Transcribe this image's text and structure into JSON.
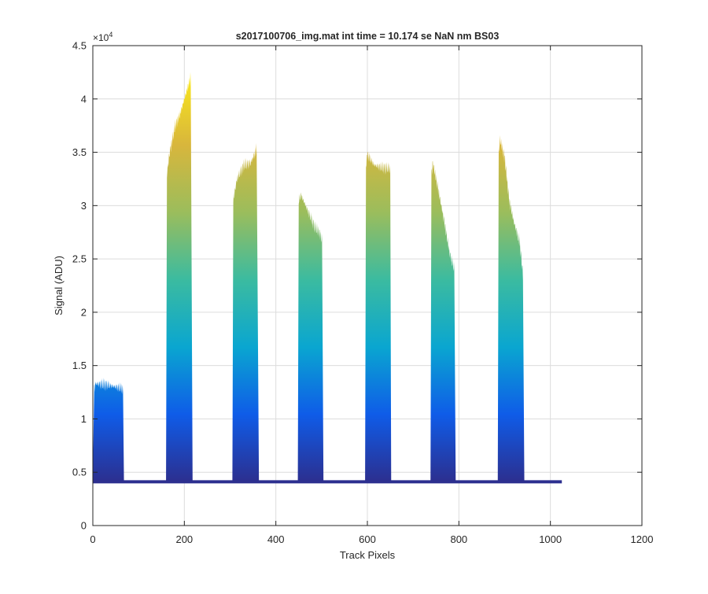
{
  "chart_data": {
    "type": "area",
    "title": "s2017100706_img.mat int time = 10.174 se  NaN nm BS03",
    "xlabel": "Track Pixels",
    "ylabel": "Signal (ADU)",
    "y_exponent_label": "×10",
    "y_exponent_power": "4",
    "xlim": [
      0,
      1200
    ],
    "ylim": [
      0,
      45000
    ],
    "x_ticks": [
      0,
      200,
      400,
      600,
      800,
      1000,
      1200
    ],
    "y_ticks": [
      0,
      5000,
      10000,
      15000,
      20000,
      25000,
      30000,
      35000,
      40000,
      45000
    ],
    "x_tick_labels": [
      "0",
      "200",
      "400",
      "600",
      "800",
      "1000",
      "1200"
    ],
    "y_tick_labels": [
      "0",
      "0.5",
      "1",
      "1.5",
      "2",
      "2.5",
      "3",
      "3.5",
      "4",
      "4.5"
    ],
    "grid": true,
    "colormap": [
      "#2c2f8f",
      "#0f5ce8",
      "#0aa6d0",
      "#3bbba0",
      "#9bbd5c",
      "#d8b63c",
      "#f9e61d"
    ],
    "baseline": 4100,
    "x_extent": [
      0,
      1025
    ],
    "bands": [
      {
        "x_start": 0,
        "x_end": 68,
        "peak": 13300,
        "profile": [
          [
            0,
            4800
          ],
          [
            3,
            12800
          ],
          [
            6,
            13300
          ],
          [
            30,
            13200
          ],
          [
            50,
            13000
          ],
          [
            60,
            12900
          ],
          [
            66,
            12800
          ],
          [
            68,
            4300
          ]
        ]
      },
      {
        "x_start": 160,
        "x_end": 218,
        "peak": 42000,
        "profile": [
          [
            160,
            4200
          ],
          [
            162,
            33000
          ],
          [
            168,
            35000
          ],
          [
            180,
            37500
          ],
          [
            190,
            38500
          ],
          [
            200,
            40000
          ],
          [
            210,
            41500
          ],
          [
            214,
            42000
          ],
          [
            218,
            4300
          ]
        ]
      },
      {
        "x_start": 305,
        "x_end": 363,
        "peak": 35300,
        "profile": [
          [
            305,
            4200
          ],
          [
            307,
            30500
          ],
          [
            315,
            32500
          ],
          [
            330,
            33800
          ],
          [
            345,
            34000
          ],
          [
            358,
            35300
          ],
          [
            363,
            4300
          ]
        ]
      },
      {
        "x_start": 448,
        "x_end": 504,
        "peak": 31000,
        "profile": [
          [
            448,
            4200
          ],
          [
            450,
            30500
          ],
          [
            455,
            31000
          ],
          [
            470,
            29500
          ],
          [
            485,
            28000
          ],
          [
            495,
            27500
          ],
          [
            501,
            26800
          ],
          [
            504,
            4300
          ]
        ]
      },
      {
        "x_start": 595,
        "x_end": 652,
        "peak": 34800,
        "profile": [
          [
            595,
            4200
          ],
          [
            597,
            33800
          ],
          [
            600,
            34800
          ],
          [
            615,
            33800
          ],
          [
            630,
            33600
          ],
          [
            645,
            33500
          ],
          [
            650,
            33500
          ],
          [
            652,
            4300
          ]
        ]
      },
      {
        "x_start": 738,
        "x_end": 793,
        "peak": 34000,
        "profile": [
          [
            738,
            4200
          ],
          [
            740,
            33000
          ],
          [
            743,
            34000
          ],
          [
            755,
            31500
          ],
          [
            768,
            28500
          ],
          [
            780,
            25500
          ],
          [
            790,
            24000
          ],
          [
            793,
            4300
          ]
        ]
      },
      {
        "x_start": 885,
        "x_end": 943,
        "peak": 36200,
        "profile": [
          [
            885,
            4200
          ],
          [
            887,
            35000
          ],
          [
            890,
            36200
          ],
          [
            900,
            34500
          ],
          [
            910,
            30500
          ],
          [
            920,
            28500
          ],
          [
            933,
            26500
          ],
          [
            940,
            23500
          ],
          [
            943,
            4300
          ]
        ]
      }
    ]
  }
}
